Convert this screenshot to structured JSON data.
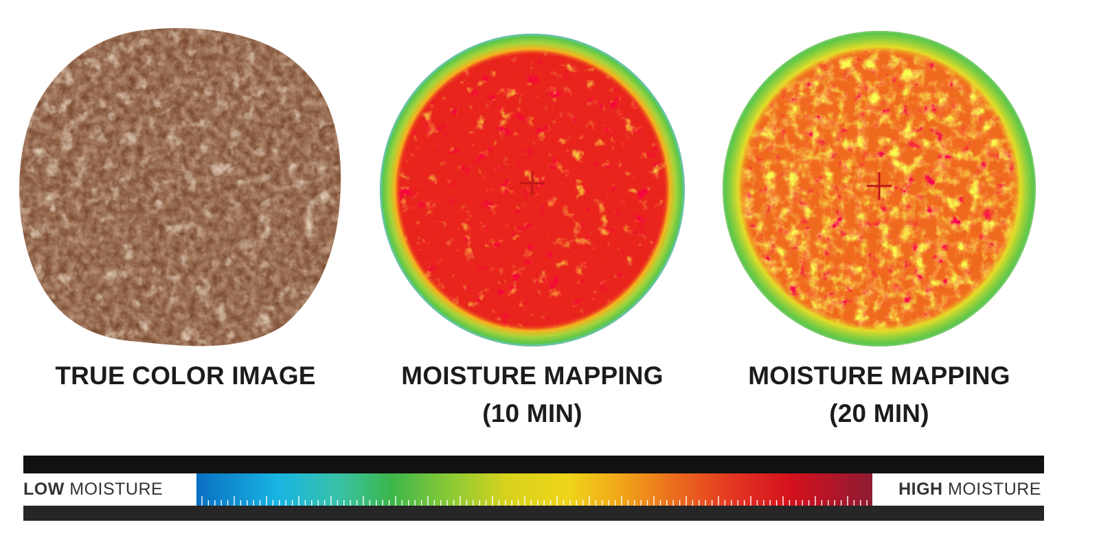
{
  "panels": [
    {
      "id": "true-color",
      "caption_lines": [
        "TRUE COLOR IMAGE"
      ]
    },
    {
      "id": "moisture-10",
      "caption_lines": [
        "MOISTURE MAPPING",
        "(10 MIN)"
      ]
    },
    {
      "id": "moisture-20",
      "caption_lines": [
        "MOISTURE MAPPING",
        "(20 MIN)"
      ]
    }
  ],
  "legend": {
    "low_prefix": "LOW",
    "low_suffix": " MOISTURE",
    "high_prefix": "HIGH",
    "high_suffix": " MOISTURE"
  },
  "colors": {
    "cookie_base": "#7a4a30",
    "map_red": "#e8241c",
    "map_orange": "#f57d1e",
    "map_yellow": "#f5e21c",
    "map_green": "#5cc64a",
    "map_cyan": "#5ec7d8"
  }
}
